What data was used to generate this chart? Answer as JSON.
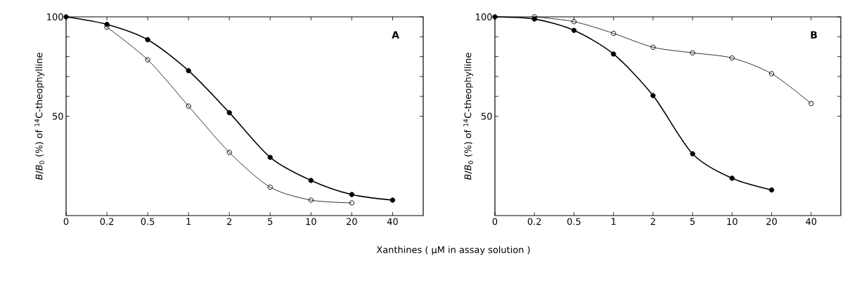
{
  "chart_data": [
    {
      "type": "line",
      "xlabel": "Xanthines ( µM in assay solution )",
      "ylabel": "*B*/*B*$_{0}$ (%) of $^{14}$C-theophylline",
      "annotations": [
        "A"
      ],
      "marker": "circle",
      "line_style": "solid",
      "categories": [
        "0",
        "0.2",
        "0.5",
        "1",
        "2",
        "5",
        "10",
        "20",
        "40"
      ],
      "ylim": [
        0,
        100
      ],
      "yticks": [
        50,
        100
      ],
      "series": [
        {
          "color": "#000000",
          "values": [
            100,
            96.2,
            88.5,
            72.9,
            51.8,
            29.3,
            17.7,
            10.6,
            7.8
          ]
        },
        {
          "color": "#000000",
          "values": [
            null,
            94.8,
            78.4,
            55.1,
            31.8,
            14.3,
            7.8,
            6.4,
            null
          ]
        }
      ]
    },
    {
      "type": "line",
      "ylabel": "*B*/*B*$_{0}$ (%) of $^{14}$C-theophylline",
      "annotations": [
        "B"
      ],
      "marker": "circle",
      "line_style": "solid",
      "categories": [
        "0",
        "0.2",
        "0.5",
        "1",
        "2",
        "5",
        "10",
        "20",
        "40"
      ],
      "ylim": [
        0,
        100
      ],
      "yticks": [
        50,
        100
      ],
      "series": [
        {
          "color": "#000000",
          "values": [
            100,
            98.9,
            93.2,
            81.3,
            60.4,
            31.1,
            18.8,
            12.9,
            null
          ]
        },
        {
          "color": "#000000",
          "values": [
            null,
            100,
            97.6,
            91.7,
            84.7,
            81.9,
            79.3,
            71.4,
            56.4
          ]
        }
      ]
    }
  ]
}
